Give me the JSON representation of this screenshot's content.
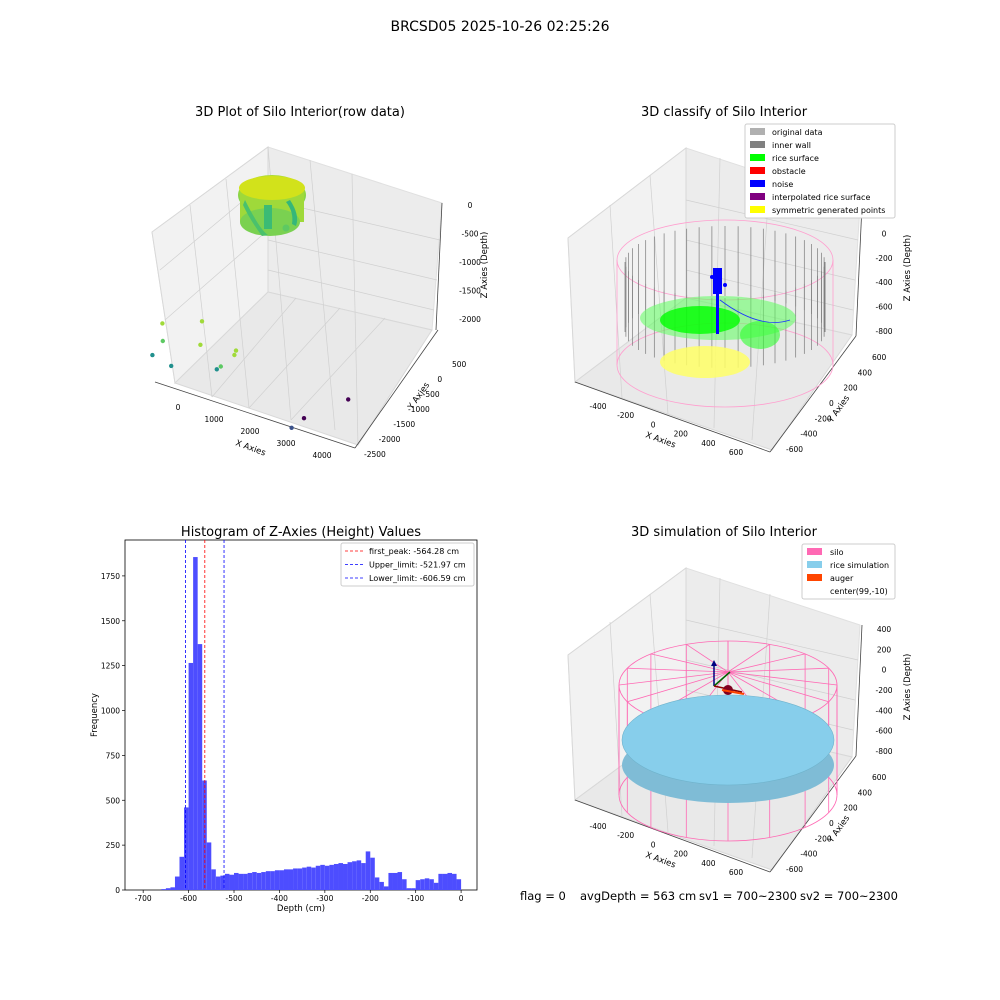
{
  "figure": {
    "suptitle": "BRCSD05 2025-10-26 02:25:26",
    "status": {
      "flag": "flag = 0",
      "avg_depth": "avgDepth = 563 cm",
      "sv1": "sv1 = 700~2300",
      "sv2": "sv2 = 700~2300"
    }
  },
  "colors": {
    "hist_bar": "#4d4dff",
    "first_peak_line": "#ff0000",
    "limit_lines": "#0000ff",
    "silo_wire": "#ff69b4",
    "rice_sim": "#87ceeb",
    "auger": "#ff4500",
    "inner_wall": "#808080",
    "rice_surface": "#00ff00",
    "noise": "#0000ff",
    "symmetric": "#ffff00"
  },
  "chart_data": [
    {
      "type": "scatter3d",
      "title": "3D Plot of Silo Interior(row data)",
      "xlabel": "X Axies",
      "ylabel": "Y Axies",
      "zlabel": "Z Axies (Depth)",
      "xticks": [
        "0",
        "1000",
        "2000",
        "3000",
        "4000"
      ],
      "yticks": [
        "500",
        "0",
        "-500",
        "-1000",
        "-1500",
        "-2000",
        "-2500"
      ],
      "zticks": [
        "0",
        "-500",
        "-1000",
        "-1500",
        "-2000"
      ],
      "colormap": "viridis",
      "outlier_points": [
        {
          "x": 3950,
          "y": -2400,
          "z": -2100
        },
        {
          "x": 3500,
          "y": -1000,
          "z": -2050
        },
        {
          "x": 3600,
          "y": -200,
          "z": -1950
        },
        {
          "x": 1300,
          "y": -600,
          "z": -1650
        },
        {
          "x": 200,
          "y": -300,
          "z": -1700
        },
        {
          "x": -100,
          "y": 100,
          "z": -1500
        },
        {
          "x": 300,
          "y": 300,
          "z": -1200
        },
        {
          "x": 1800,
          "y": 100,
          "z": -1350
        },
        {
          "x": 1400,
          "y": 400,
          "z": -1050
        },
        {
          "x": 2400,
          "y": 500,
          "z": -1000
        },
        {
          "x": 2500,
          "y": 600,
          "z": -900
        },
        {
          "x": 400,
          "y": 500,
          "z": -900
        },
        {
          "x": 1500,
          "y": 500,
          "z": -700
        }
      ]
    },
    {
      "type": "scatter3d",
      "title": "3D classify of Silo Interior",
      "xlabel": "X Axies",
      "ylabel": "Y Axies",
      "zlabel": "Z Axies (Depth)",
      "xticks": [
        "-400",
        "-200",
        "0",
        "200",
        "400",
        "600"
      ],
      "yticks": [
        "600",
        "400",
        "200",
        "0",
        "-200",
        "-400",
        "-600"
      ],
      "zticks": [
        "200",
        "0",
        "-200",
        "-400",
        "-600",
        "-800"
      ],
      "legend_position": "upper-right",
      "legend": [
        {
          "label": "original data",
          "color": "#b0b0b0"
        },
        {
          "label": "inner wall",
          "color": "#808080"
        },
        {
          "label": "rice surface",
          "color": "#00ff00"
        },
        {
          "label": "obstacle",
          "color": "#ff0000"
        },
        {
          "label": "noise",
          "color": "#0000ff"
        },
        {
          "label": "interpolated rice surface",
          "color": "#800080"
        },
        {
          "label": "symmetric generated points",
          "color": "#ffff00"
        }
      ]
    },
    {
      "type": "bar",
      "title": "Histogram of Z-Axies (Height) Values",
      "xlabel": "Depth (cm)",
      "ylabel": "Frequency",
      "xlim": [
        -740,
        35
      ],
      "ylim": [
        0,
        1950
      ],
      "xticks": [
        -700,
        -600,
        -500,
        -400,
        -300,
        -200,
        -100,
        0
      ],
      "yticks": [
        0,
        250,
        500,
        750,
        1000,
        1250,
        1500,
        1750
      ],
      "bin_width": 10,
      "bins": [
        {
          "x": -655,
          "value": 5
        },
        {
          "x": -645,
          "value": 10
        },
        {
          "x": -635,
          "value": 15
        },
        {
          "x": -625,
          "value": 75
        },
        {
          "x": -615,
          "value": 185
        },
        {
          "x": -605,
          "value": 460
        },
        {
          "x": -595,
          "value": 1265
        },
        {
          "x": -585,
          "value": 1855
        },
        {
          "x": -575,
          "value": 1370
        },
        {
          "x": -565,
          "value": 610
        },
        {
          "x": -555,
          "value": 265
        },
        {
          "x": -545,
          "value": 115
        },
        {
          "x": -535,
          "value": 75
        },
        {
          "x": -525,
          "value": 80
        },
        {
          "x": -515,
          "value": 90
        },
        {
          "x": -505,
          "value": 85
        },
        {
          "x": -495,
          "value": 95
        },
        {
          "x": -485,
          "value": 90
        },
        {
          "x": -475,
          "value": 90
        },
        {
          "x": -465,
          "value": 95
        },
        {
          "x": -455,
          "value": 100
        },
        {
          "x": -445,
          "value": 95
        },
        {
          "x": -435,
          "value": 100
        },
        {
          "x": -425,
          "value": 105
        },
        {
          "x": -415,
          "value": 105
        },
        {
          "x": -405,
          "value": 110
        },
        {
          "x": -395,
          "value": 110
        },
        {
          "x": -385,
          "value": 115
        },
        {
          "x": -375,
          "value": 115
        },
        {
          "x": -365,
          "value": 120
        },
        {
          "x": -355,
          "value": 120
        },
        {
          "x": -345,
          "value": 125
        },
        {
          "x": -335,
          "value": 130
        },
        {
          "x": -325,
          "value": 125
        },
        {
          "x": -315,
          "value": 135
        },
        {
          "x": -305,
          "value": 140
        },
        {
          "x": -295,
          "value": 135
        },
        {
          "x": -285,
          "value": 140
        },
        {
          "x": -275,
          "value": 145
        },
        {
          "x": -265,
          "value": 150
        },
        {
          "x": -255,
          "value": 145
        },
        {
          "x": -245,
          "value": 155
        },
        {
          "x": -235,
          "value": 160
        },
        {
          "x": -225,
          "value": 165
        },
        {
          "x": -215,
          "value": 150
        },
        {
          "x": -205,
          "value": 215
        },
        {
          "x": -195,
          "value": 180
        },
        {
          "x": -185,
          "value": 70
        },
        {
          "x": -175,
          "value": 45
        },
        {
          "x": -165,
          "value": 20
        },
        {
          "x": -155,
          "value": 95
        },
        {
          "x": -145,
          "value": 95
        },
        {
          "x": -135,
          "value": 100
        },
        {
          "x": -125,
          "value": 60
        }
      ],
      "vlines": [
        {
          "label": "first_peak: -564.28 cm",
          "x": -564.28,
          "color": "#ff0000"
        },
        {
          "label": "Upper_limit: -521.97 cm",
          "x": -521.97,
          "color": "#0000ff"
        },
        {
          "label": "Lower_limit: -606.59 cm",
          "x": -606.59,
          "color": "#0000ff"
        }
      ],
      "legend_position": "upper-right"
    },
    {
      "type": "surface3d",
      "title": "3D simulation of Silo Interior",
      "xlabel": "X Axies",
      "ylabel": "Y Axies",
      "zlabel": "Z Axies (Depth)",
      "xticks": [
        "-400",
        "-200",
        "0",
        "200",
        "400",
        "600"
      ],
      "yticks": [
        "600",
        "400",
        "200",
        "0",
        "-200",
        "-400",
        "-600"
      ],
      "zticks": [
        "400",
        "200",
        "0",
        "-200",
        "-400",
        "-600",
        "-800"
      ],
      "legend_position": "upper-right",
      "legend": [
        {
          "label": "silo",
          "color": "#ff69b4"
        },
        {
          "label": "rice simulation",
          "color": "#87ceeb"
        },
        {
          "label": "auger",
          "color": "#ff4500"
        },
        {
          "label": "center(99,-10)",
          "color": ""
        }
      ]
    }
  ]
}
